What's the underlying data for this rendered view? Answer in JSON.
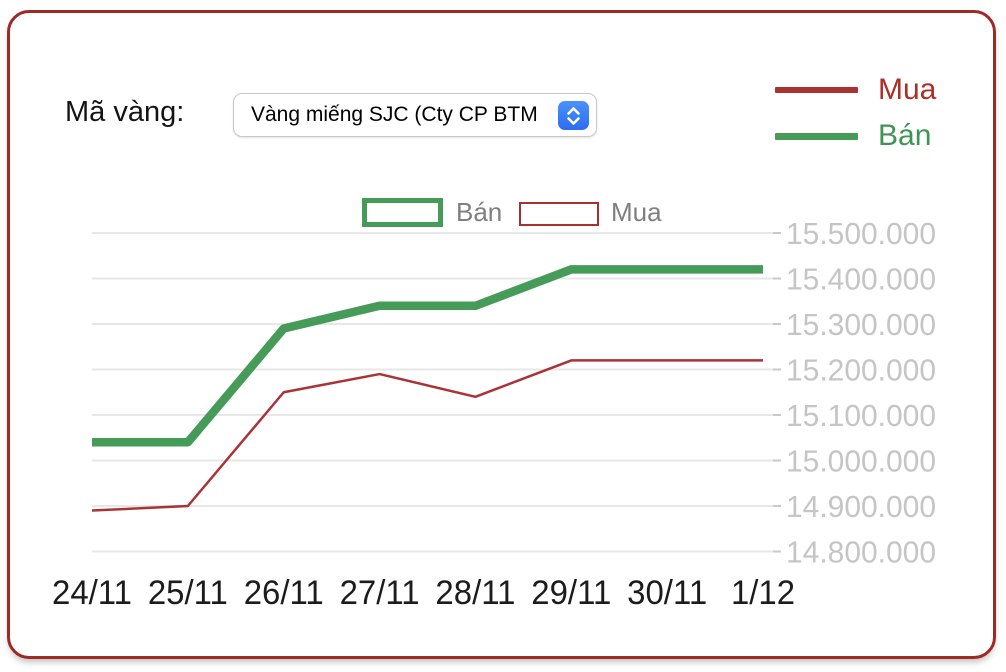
{
  "header": {
    "label": "Mã vàng:",
    "select_value": "Vàng miếng SJC (Cty CP BTM"
  },
  "legend_panel": {
    "items": [
      {
        "label": "Mua",
        "color": "#ab2f2e"
      },
      {
        "label": "Bán",
        "color": "#469b58"
      }
    ]
  },
  "chart_legend": {
    "ban_label": "Bán",
    "mua_label": "Mua"
  },
  "colors": {
    "card_border": "#9e2a26",
    "gridline": "#e7e7e7",
    "y_tick": "#c9c9c9",
    "y_tick_label": "#c5c5c5",
    "x_label": "#1c1c1c",
    "chart_legend_text": "#7f7f7f",
    "stepper_blue": "#3b7ff5",
    "mua": "#ab2f2e",
    "ban": "#469b58"
  },
  "chart_data": {
    "type": "line",
    "categories": [
      "24/11",
      "25/11",
      "26/11",
      "27/11",
      "28/11",
      "29/11",
      "30/11",
      "1/12"
    ],
    "series": [
      {
        "name": "Bán",
        "color": "#469b58",
        "stroke_width": 8.5,
        "values": [
          15040000,
          15040000,
          15290000,
          15340000,
          15340000,
          15420000,
          15420000,
          15420000
        ]
      },
      {
        "name": "Mua",
        "color": "#a93336",
        "stroke_width": 2.5,
        "values": [
          14890000,
          14900000,
          15150000,
          15190000,
          15140000,
          15220000,
          15220000,
          15220000
        ]
      }
    ],
    "y_ticks": [
      {
        "value": 15500000,
        "label": "15.500.000"
      },
      {
        "value": 15400000,
        "label": "15.400.000"
      },
      {
        "value": 15300000,
        "label": "15.300.000"
      },
      {
        "value": 15200000,
        "label": "15.200.000"
      },
      {
        "value": 15100000,
        "label": "15.100.000"
      },
      {
        "value": 15000000,
        "label": "15.000.000"
      },
      {
        "value": 14900000,
        "label": "14.900.000"
      },
      {
        "value": 14800000,
        "label": "14.800.000"
      }
    ],
    "ylim": [
      14800000,
      15500000
    ],
    "grid": true,
    "legend_position": "top-center-and-top-right"
  }
}
